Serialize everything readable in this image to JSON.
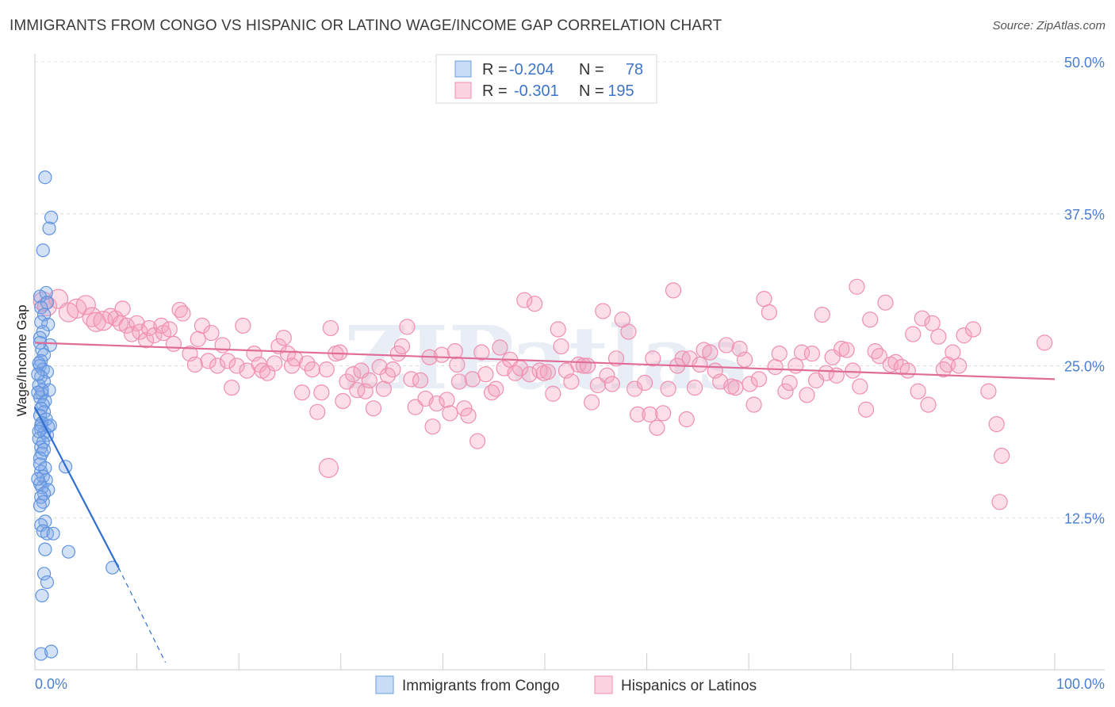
{
  "header": {
    "title": "IMMIGRANTS FROM CONGO VS HISPANIC OR LATINO WAGE/INCOME GAP CORRELATION CHART",
    "source": "Source: ZipAtlas.com"
  },
  "watermark": "ZIPatlas",
  "legend": {
    "r_label": "R =",
    "n_label": "N =",
    "rows": [
      {
        "r": "-0.204",
        "n": "78"
      },
      {
        "r": "-0.301",
        "n": "195"
      }
    ]
  },
  "chart_data": {
    "type": "scatter",
    "title": "IMMIGRANTS FROM CONGO VS HISPANIC OR LATINO WAGE/INCOME GAP CORRELATION CHART",
    "xlabel": "",
    "ylabel": "Wage/Income Gap",
    "xlim": [
      0,
      100
    ],
    "ylim": [
      0,
      50
    ],
    "x_tick_labels": [
      "0.0%",
      "100.0%"
    ],
    "y_ticks": [
      12.5,
      25.0,
      37.5,
      50.0
    ],
    "y_tick_labels": [
      "12.5%",
      "25.0%",
      "37.5%",
      "50.0%"
    ],
    "grid": true,
    "colors": {
      "congo": "#6a9ee6",
      "congo_line": "#2f6fd0",
      "hispanic": "#f08fb0",
      "hispanic_line": "#e06d97"
    },
    "series": [
      {
        "name": "Immigrants from Congo",
        "r": -0.204,
        "n": 78,
        "trend": {
          "x": [
            0,
            8.2
          ],
          "y": [
            21.6,
            8.4
          ],
          "dashed_to": [
            12.8,
            0.6
          ]
        },
        "points": [
          [
            1.0,
            40.5
          ],
          [
            1.6,
            37.2
          ],
          [
            1.4,
            36.3
          ],
          [
            0.8,
            34.5
          ],
          [
            1.1,
            31.0
          ],
          [
            0.5,
            30.7
          ],
          [
            1.2,
            30.2
          ],
          [
            0.6,
            29.8
          ],
          [
            0.9,
            29.2
          ],
          [
            0.6,
            28.6
          ],
          [
            1.3,
            28.4
          ],
          [
            0.8,
            27.8
          ],
          [
            0.5,
            27.3
          ],
          [
            1.5,
            26.7
          ],
          [
            0.7,
            26.3
          ],
          [
            0.9,
            25.9
          ],
          [
            0.6,
            25.4
          ],
          [
            0.5,
            25.0
          ],
          [
            0.8,
            24.7
          ],
          [
            1.2,
            24.5
          ],
          [
            0.6,
            24.1
          ],
          [
            0.9,
            23.7
          ],
          [
            0.4,
            23.4
          ],
          [
            1.4,
            23.0
          ],
          [
            0.7,
            22.7
          ],
          [
            0.5,
            22.4
          ],
          [
            1.0,
            22.1
          ],
          [
            0.8,
            21.8
          ],
          [
            0.6,
            21.5
          ],
          [
            0.9,
            21.2
          ],
          [
            0.5,
            20.9
          ],
          [
            1.1,
            20.6
          ],
          [
            0.7,
            20.3
          ],
          [
            1.3,
            20.0
          ],
          [
            0.6,
            19.8
          ],
          [
            0.9,
            19.5
          ],
          [
            1.2,
            19.3
          ],
          [
            0.4,
            19.0
          ],
          [
            0.8,
            18.7
          ],
          [
            0.6,
            18.3
          ],
          [
            0.7,
            17.8
          ],
          [
            0.5,
            17.4
          ],
          [
            3.0,
            16.7
          ],
          [
            1.0,
            16.6
          ],
          [
            0.6,
            16.3
          ],
          [
            0.8,
            15.9
          ],
          [
            1.1,
            15.6
          ],
          [
            0.5,
            15.3
          ],
          [
            0.7,
            15.0
          ],
          [
            1.3,
            14.8
          ],
          [
            0.9,
            14.5
          ],
          [
            0.6,
            14.2
          ],
          [
            0.8,
            13.8
          ],
          [
            0.5,
            13.5
          ],
          [
            1.0,
            12.2
          ],
          [
            0.6,
            11.9
          ],
          [
            0.8,
            11.4
          ],
          [
            1.2,
            11.2
          ],
          [
            1.8,
            11.2
          ],
          [
            1.0,
            9.9
          ],
          [
            3.3,
            9.7
          ],
          [
            7.6,
            8.4
          ],
          [
            0.9,
            7.9
          ],
          [
            1.2,
            7.2
          ],
          [
            0.7,
            6.1
          ],
          [
            0.6,
            1.3
          ],
          [
            1.6,
            1.5
          ],
          [
            0.5,
            26.9
          ],
          [
            0.4,
            25.2
          ],
          [
            0.3,
            24.3
          ],
          [
            0.7,
            23.0
          ],
          [
            0.3,
            22.8
          ],
          [
            0.6,
            20.1
          ],
          [
            0.4,
            19.6
          ],
          [
            0.9,
            18.1
          ],
          [
            0.5,
            16.9
          ],
          [
            1.5,
            20.1
          ],
          [
            0.3,
            15.7
          ]
        ]
      },
      {
        "name": "Hispanics or Latinos",
        "r": -0.301,
        "n": 195,
        "trend": {
          "x": [
            0,
            100
          ],
          "y": [
            26.9,
            23.9
          ]
        },
        "points": [
          [
            0.8,
            30.3
          ],
          [
            1.2,
            29.9
          ],
          [
            2.3,
            30.5
          ],
          [
            3.3,
            29.4
          ],
          [
            4.1,
            29.7
          ],
          [
            5.0,
            30.0
          ],
          [
            5.6,
            29.0
          ],
          [
            6.0,
            28.6
          ],
          [
            6.7,
            28.7
          ],
          [
            7.4,
            29.1
          ],
          [
            7.9,
            28.9
          ],
          [
            8.4,
            28.5
          ],
          [
            8.6,
            29.7
          ],
          [
            9.0,
            28.3
          ],
          [
            9.5,
            27.6
          ],
          [
            10.0,
            28.5
          ],
          [
            10.3,
            27.8
          ],
          [
            10.9,
            27.1
          ],
          [
            11.2,
            28.1
          ],
          [
            11.7,
            27.5
          ],
          [
            12.4,
            28.3
          ],
          [
            12.6,
            27.7
          ],
          [
            13.2,
            28.0
          ],
          [
            13.6,
            26.8
          ],
          [
            14.2,
            29.6
          ],
          [
            14.5,
            29.3
          ],
          [
            15.2,
            26.0
          ],
          [
            15.7,
            25.1
          ],
          [
            16.0,
            27.2
          ],
          [
            16.4,
            28.3
          ],
          [
            17.0,
            25.4
          ],
          [
            17.3,
            27.7
          ],
          [
            17.9,
            25.0
          ],
          [
            18.4,
            26.7
          ],
          [
            18.9,
            25.4
          ],
          [
            19.3,
            23.2
          ],
          [
            19.8,
            25.0
          ],
          [
            20.4,
            28.3
          ],
          [
            20.8,
            24.6
          ],
          [
            21.5,
            26.0
          ],
          [
            22.0,
            25.1
          ],
          [
            22.3,
            24.6
          ],
          [
            22.8,
            24.4
          ],
          [
            23.5,
            25.2
          ],
          [
            23.9,
            26.6
          ],
          [
            24.4,
            27.3
          ],
          [
            24.8,
            26.0
          ],
          [
            25.2,
            25.0
          ],
          [
            25.5,
            25.6
          ],
          [
            26.2,
            22.8
          ],
          [
            26.7,
            25.2
          ],
          [
            27.2,
            24.7
          ],
          [
            27.7,
            21.2
          ],
          [
            28.1,
            22.8
          ],
          [
            28.6,
            24.7
          ],
          [
            29.0,
            28.1
          ],
          [
            29.5,
            26.0
          ],
          [
            29.9,
            26.1
          ],
          [
            30.2,
            22.1
          ],
          [
            30.6,
            23.7
          ],
          [
            31.2,
            24.3
          ],
          [
            31.6,
            23.0
          ],
          [
            32.0,
            24.6
          ],
          [
            32.4,
            22.9
          ],
          [
            32.8,
            23.8
          ],
          [
            33.2,
            21.5
          ],
          [
            33.8,
            24.9
          ],
          [
            34.2,
            23.1
          ],
          [
            34.6,
            24.2
          ],
          [
            35.1,
            24.7
          ],
          [
            35.6,
            26.0
          ],
          [
            36.0,
            26.6
          ],
          [
            36.5,
            28.2
          ],
          [
            36.9,
            23.9
          ],
          [
            37.3,
            21.6
          ],
          [
            37.8,
            23.8
          ],
          [
            38.3,
            22.3
          ],
          [
            38.7,
            25.7
          ],
          [
            39.0,
            20.0
          ],
          [
            39.4,
            21.9
          ],
          [
            39.9,
            25.9
          ],
          [
            40.4,
            22.2
          ],
          [
            40.7,
            21.1
          ],
          [
            41.2,
            26.2
          ],
          [
            41.6,
            23.7
          ],
          [
            42.1,
            21.5
          ],
          [
            42.5,
            20.9
          ],
          [
            42.9,
            23.9
          ],
          [
            43.4,
            18.8
          ],
          [
            43.8,
            26.1
          ],
          [
            44.2,
            24.3
          ],
          [
            44.8,
            22.8
          ],
          [
            45.2,
            23.1
          ],
          [
            45.6,
            26.5
          ],
          [
            46.0,
            24.8
          ],
          [
            46.6,
            25.5
          ],
          [
            47.1,
            24.4
          ],
          [
            47.6,
            24.8
          ],
          [
            48.0,
            30.4
          ],
          [
            48.5,
            24.3
          ],
          [
            49.0,
            30.1
          ],
          [
            49.5,
            24.6
          ],
          [
            49.9,
            24.4
          ],
          [
            50.3,
            24.5
          ],
          [
            50.8,
            22.7
          ],
          [
            51.3,
            28.0
          ],
          [
            51.6,
            26.6
          ],
          [
            52.1,
            24.6
          ],
          [
            52.6,
            23.7
          ],
          [
            53.3,
            25.1
          ],
          [
            53.8,
            25.0
          ],
          [
            54.2,
            25.0
          ],
          [
            54.6,
            22.0
          ],
          [
            55.2,
            23.4
          ],
          [
            55.7,
            29.5
          ],
          [
            56.1,
            24.2
          ],
          [
            56.6,
            23.5
          ],
          [
            57.0,
            25.6
          ],
          [
            57.6,
            28.8
          ],
          [
            58.2,
            27.8
          ],
          [
            58.8,
            23.1
          ],
          [
            59.1,
            21.0
          ],
          [
            59.8,
            23.6
          ],
          [
            60.3,
            21.0
          ],
          [
            60.6,
            25.6
          ],
          [
            61.0,
            19.9
          ],
          [
            61.6,
            21.1
          ],
          [
            62.1,
            23.1
          ],
          [
            62.6,
            31.2
          ],
          [
            63.0,
            25.0
          ],
          [
            63.5,
            25.6
          ],
          [
            63.9,
            20.6
          ],
          [
            64.2,
            25.6
          ],
          [
            64.7,
            23.2
          ],
          [
            65.2,
            25.1
          ],
          [
            65.6,
            26.3
          ],
          [
            66.2,
            26.1
          ],
          [
            66.7,
            24.6
          ],
          [
            67.2,
            23.7
          ],
          [
            67.8,
            26.7
          ],
          [
            68.3,
            23.3
          ],
          [
            68.7,
            23.2
          ],
          [
            69.1,
            26.4
          ],
          [
            69.6,
            25.5
          ],
          [
            70.1,
            23.5
          ],
          [
            70.5,
            21.8
          ],
          [
            71.0,
            23.9
          ],
          [
            71.5,
            30.5
          ],
          [
            72.0,
            29.4
          ],
          [
            72.6,
            24.9
          ],
          [
            73.0,
            26.0
          ],
          [
            73.6,
            22.9
          ],
          [
            74.0,
            23.6
          ],
          [
            74.6,
            25.0
          ],
          [
            75.2,
            26.1
          ],
          [
            75.7,
            22.6
          ],
          [
            76.2,
            26.0
          ],
          [
            76.6,
            23.8
          ],
          [
            77.2,
            29.2
          ],
          [
            77.6,
            24.4
          ],
          [
            78.2,
            25.7
          ],
          [
            78.6,
            24.2
          ],
          [
            79.1,
            26.4
          ],
          [
            79.6,
            26.3
          ],
          [
            80.2,
            24.6
          ],
          [
            80.6,
            31.5
          ],
          [
            80.9,
            23.3
          ],
          [
            81.5,
            21.4
          ],
          [
            81.9,
            28.8
          ],
          [
            82.4,
            26.2
          ],
          [
            82.8,
            25.8
          ],
          [
            83.4,
            30.2
          ],
          [
            83.9,
            25.1
          ],
          [
            84.4,
            25.3
          ],
          [
            85.0,
            24.9
          ],
          [
            85.6,
            24.6
          ],
          [
            86.1,
            27.6
          ],
          [
            86.6,
            22.9
          ],
          [
            87.0,
            28.9
          ],
          [
            87.6,
            21.8
          ],
          [
            88.0,
            28.5
          ],
          [
            88.6,
            27.4
          ],
          [
            89.1,
            24.7
          ],
          [
            89.5,
            25.1
          ],
          [
            90.0,
            26.1
          ],
          [
            90.6,
            25.0
          ],
          [
            91.1,
            27.5
          ],
          [
            92.0,
            28.0
          ],
          [
            93.5,
            22.9
          ],
          [
            94.3,
            20.2
          ],
          [
            94.8,
            17.6
          ],
          [
            94.6,
            13.8
          ],
          [
            99.0,
            26.9
          ],
          [
            41.4,
            25.1
          ],
          [
            28.8,
            16.6
          ]
        ]
      }
    ]
  },
  "bottom_legend": {
    "items": [
      {
        "label": "Immigrants from Congo"
      },
      {
        "label": "Hispanics or Latinos"
      }
    ]
  }
}
